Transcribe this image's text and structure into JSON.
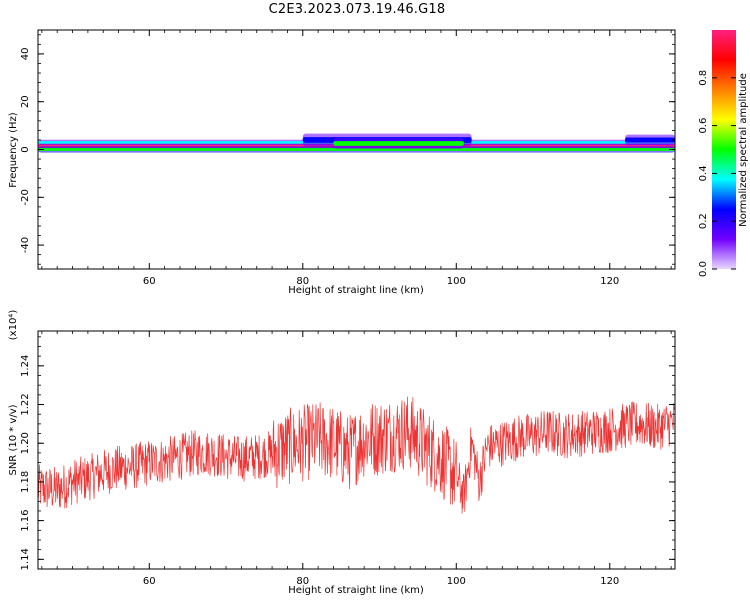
{
  "figure": {
    "title": "C2E3.2023.073.19.46.G18"
  },
  "chart_data": [
    {
      "type": "heatmap",
      "name": "spectrogram",
      "xlabel": "Height of straight line (km)",
      "ylabel": "Frequency (Hz)",
      "xlim": [
        45.5,
        128.5
      ],
      "ylim": [
        -50,
        50
      ],
      "x_ticks": [
        60,
        80,
        100,
        120
      ],
      "y_ticks": [
        -40,
        -20,
        0,
        20,
        40
      ],
      "colorbar": {
        "label": "Normalized spectral amplitude",
        "range": [
          0,
          1
        ],
        "ticks": [
          0.0,
          0.2,
          0.4,
          0.6,
          0.8
        ],
        "tick_labels": [
          "0.0",
          "0.2",
          "0.4",
          "0.6",
          "0.8"
        ],
        "colormap": [
          "#e8d8ff",
          "#7000ff",
          "#0000ff",
          "#00ffff",
          "#00ff00",
          "#ffff00",
          "#ff8000",
          "#ff0000",
          "#ff2080"
        ]
      },
      "bands": [
        {
          "x": [
            45.5,
            128.5
          ],
          "f": [
            1.5,
            1.5
          ],
          "halfwidth": 0.8,
          "amplitude": 0.95
        },
        {
          "x": [
            45.5,
            128.5
          ],
          "f": [
            0.0,
            0.0
          ],
          "halfwidth": 0.6,
          "amplitude": 0.55
        },
        {
          "x": [
            45.5,
            128.5
          ],
          "f": [
            3.0,
            3.0
          ],
          "halfwidth": 0.5,
          "amplitude": 0.4
        },
        {
          "x": [
            80.0,
            102.0
          ],
          "f": [
            4.0,
            4.0
          ],
          "halfwidth": 1.2,
          "amplitude": 0.3
        },
        {
          "x": [
            84.0,
            101.0
          ],
          "f": [
            2.5,
            2.5
          ],
          "halfwidth": 1.0,
          "amplitude": 0.5
        },
        {
          "x": [
            122.0,
            128.5
          ],
          "f": [
            4.0,
            4.0
          ],
          "halfwidth": 1.0,
          "amplitude": 0.25
        }
      ]
    },
    {
      "type": "line",
      "name": "snr",
      "xlabel": "Height of straight line (km)",
      "ylabel": "SNR (10 * v/v)",
      "y_multiplier_label": "(x10⁴)",
      "xlim": [
        45.5,
        128.5
      ],
      "ylim": [
        1.135,
        1.258
      ],
      "x_ticks": [
        60,
        80,
        100,
        120
      ],
      "y_ticks": [
        1.14,
        1.16,
        1.18,
        1.2,
        1.22,
        1.24
      ],
      "y_tick_labels": [
        "1.14",
        "1.16",
        "1.18",
        "1.20",
        "1.22",
        "1.24"
      ],
      "color": "#ee3333",
      "series": [
        {
          "x": [
            45.5,
            48,
            50,
            52,
            54,
            56,
            58,
            60,
            62,
            64,
            66,
            68,
            70,
            72,
            74,
            76,
            78,
            80,
            82,
            84,
            86,
            88,
            90,
            92,
            94,
            96,
            98,
            100,
            101,
            102,
            103,
            104,
            106,
            108,
            110,
            112,
            114,
            116,
            118,
            120,
            122,
            124,
            126,
            128.5
          ],
          "y": [
            1.177,
            1.176,
            1.18,
            1.182,
            1.185,
            1.187,
            1.188,
            1.19,
            1.191,
            1.193,
            1.195,
            1.195,
            1.193,
            1.192,
            1.193,
            1.195,
            1.198,
            1.2,
            1.202,
            1.2,
            1.195,
            1.202,
            1.203,
            1.205,
            1.206,
            1.198,
            1.192,
            1.183,
            1.172,
            1.2,
            1.18,
            1.198,
            1.2,
            1.203,
            1.204,
            1.206,
            1.204,
            1.205,
            1.206,
            1.207,
            1.209,
            1.21,
            1.208,
            1.211
          ]
        }
      ]
    }
  ]
}
